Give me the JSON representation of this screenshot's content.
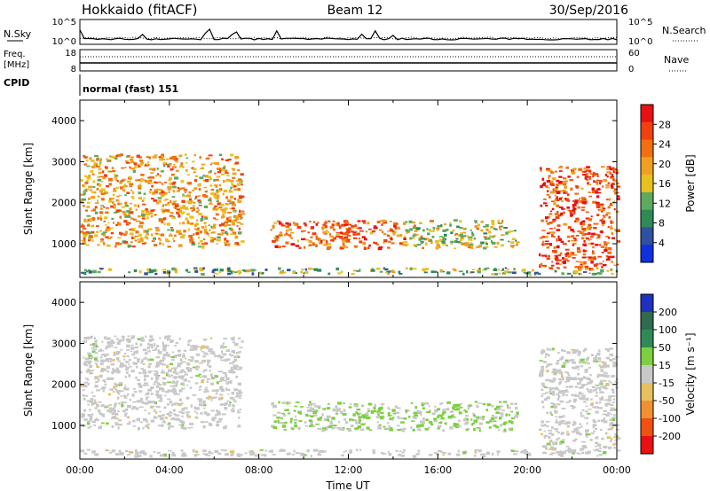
{
  "header": {
    "station": "Hokkaido (fitACF)",
    "beam": "Beam 12",
    "date": "30/Sep/2016"
  },
  "summary_panels": {
    "noise": {
      "left_label": "N.Sky",
      "right_label": "N.Search",
      "ticks_left": [
        "10^5",
        "10^0"
      ],
      "ticks_right": [
        "10^5",
        "10^0"
      ]
    },
    "frequency": {
      "left_label_1": "Freq.",
      "left_label_2": "[MHz]",
      "ticks_left": [
        "18",
        "8"
      ],
      "right_label": "Nave",
      "ticks_right": [
        "60",
        "0"
      ]
    },
    "cpid": {
      "label": "CPID",
      "mode_text": "normal (fast) 151"
    }
  },
  "colors": {
    "power_scale": [
      "#1030e0",
      "#3050a0",
      "#2e8b57",
      "#5fa85f",
      "#e8c020",
      "#f0a020",
      "#f07010",
      "#f04010",
      "#e81010"
    ],
    "velocity_scale": [
      "#2030c0",
      "#2e6b4f",
      "#2e8b57",
      "#7cd040",
      "#c8c8c8",
      "#e8c060",
      "#f09030",
      "#f05010",
      "#e81010"
    ]
  },
  "chart_data": [
    {
      "type": "heatmap",
      "quantity": "power",
      "ylabel": "Slant Range [km]",
      "xlabel": "",
      "ylim": [
        180,
        4500
      ],
      "y_ticks": [
        "1000",
        "2000",
        "3000",
        "4000"
      ],
      "x_ticks": [],
      "colorbar": {
        "label": "Power [dB]",
        "levels": [
          "4",
          "8",
          "12",
          "16",
          "20",
          "24",
          "28"
        ],
        "range": [
          0,
          32
        ]
      },
      "echo_regions": [
        {
          "t_start": 0.0,
          "t_end": 7.2,
          "r_start": 950,
          "r_end": 3200,
          "value": 20
        },
        {
          "t_start": 8.5,
          "t_end": 14.5,
          "r_start": 900,
          "r_end": 1600,
          "value": 24
        },
        {
          "t_start": 14.5,
          "t_end": 19.5,
          "r_start": 900,
          "r_end": 1600,
          "value": 16
        },
        {
          "t_start": 20.5,
          "t_end": 24.0,
          "r_start": 400,
          "r_end": 2900,
          "value": 26
        },
        {
          "t_start": 0.0,
          "t_end": 24.0,
          "r_start": 280,
          "r_end": 430,
          "value": 12
        }
      ]
    },
    {
      "type": "heatmap",
      "quantity": "velocity",
      "ylabel": "Slant Range [km]",
      "xlabel": "Time UT",
      "ylim": [
        180,
        4500
      ],
      "y_ticks": [
        "1000",
        "2000",
        "3000",
        "4000"
      ],
      "x_ticks": [
        "00:00",
        "04:00",
        "08:00",
        "12:00",
        "16:00",
        "20:00",
        "00:00"
      ],
      "colorbar": {
        "label": "Velocity [m s⁻¹]",
        "levels": [
          "200",
          "100",
          "50",
          "15",
          "-15",
          "-50",
          "-100",
          "-200"
        ],
        "range": [
          -250,
          250
        ]
      },
      "echo_regions": [
        {
          "t_start": 0.0,
          "t_end": 7.2,
          "r_start": 950,
          "r_end": 3200,
          "value": 0
        },
        {
          "t_start": 8.5,
          "t_end": 14.5,
          "r_start": 900,
          "r_end": 1600,
          "value": 30
        },
        {
          "t_start": 14.5,
          "t_end": 19.5,
          "r_start": 900,
          "r_end": 1600,
          "value": 30
        },
        {
          "t_start": 20.5,
          "t_end": 24.0,
          "r_start": 400,
          "r_end": 2900,
          "value": 0
        },
        {
          "t_start": 0.0,
          "t_end": 24.0,
          "r_start": 280,
          "r_end": 430,
          "value": 0
        }
      ]
    }
  ]
}
